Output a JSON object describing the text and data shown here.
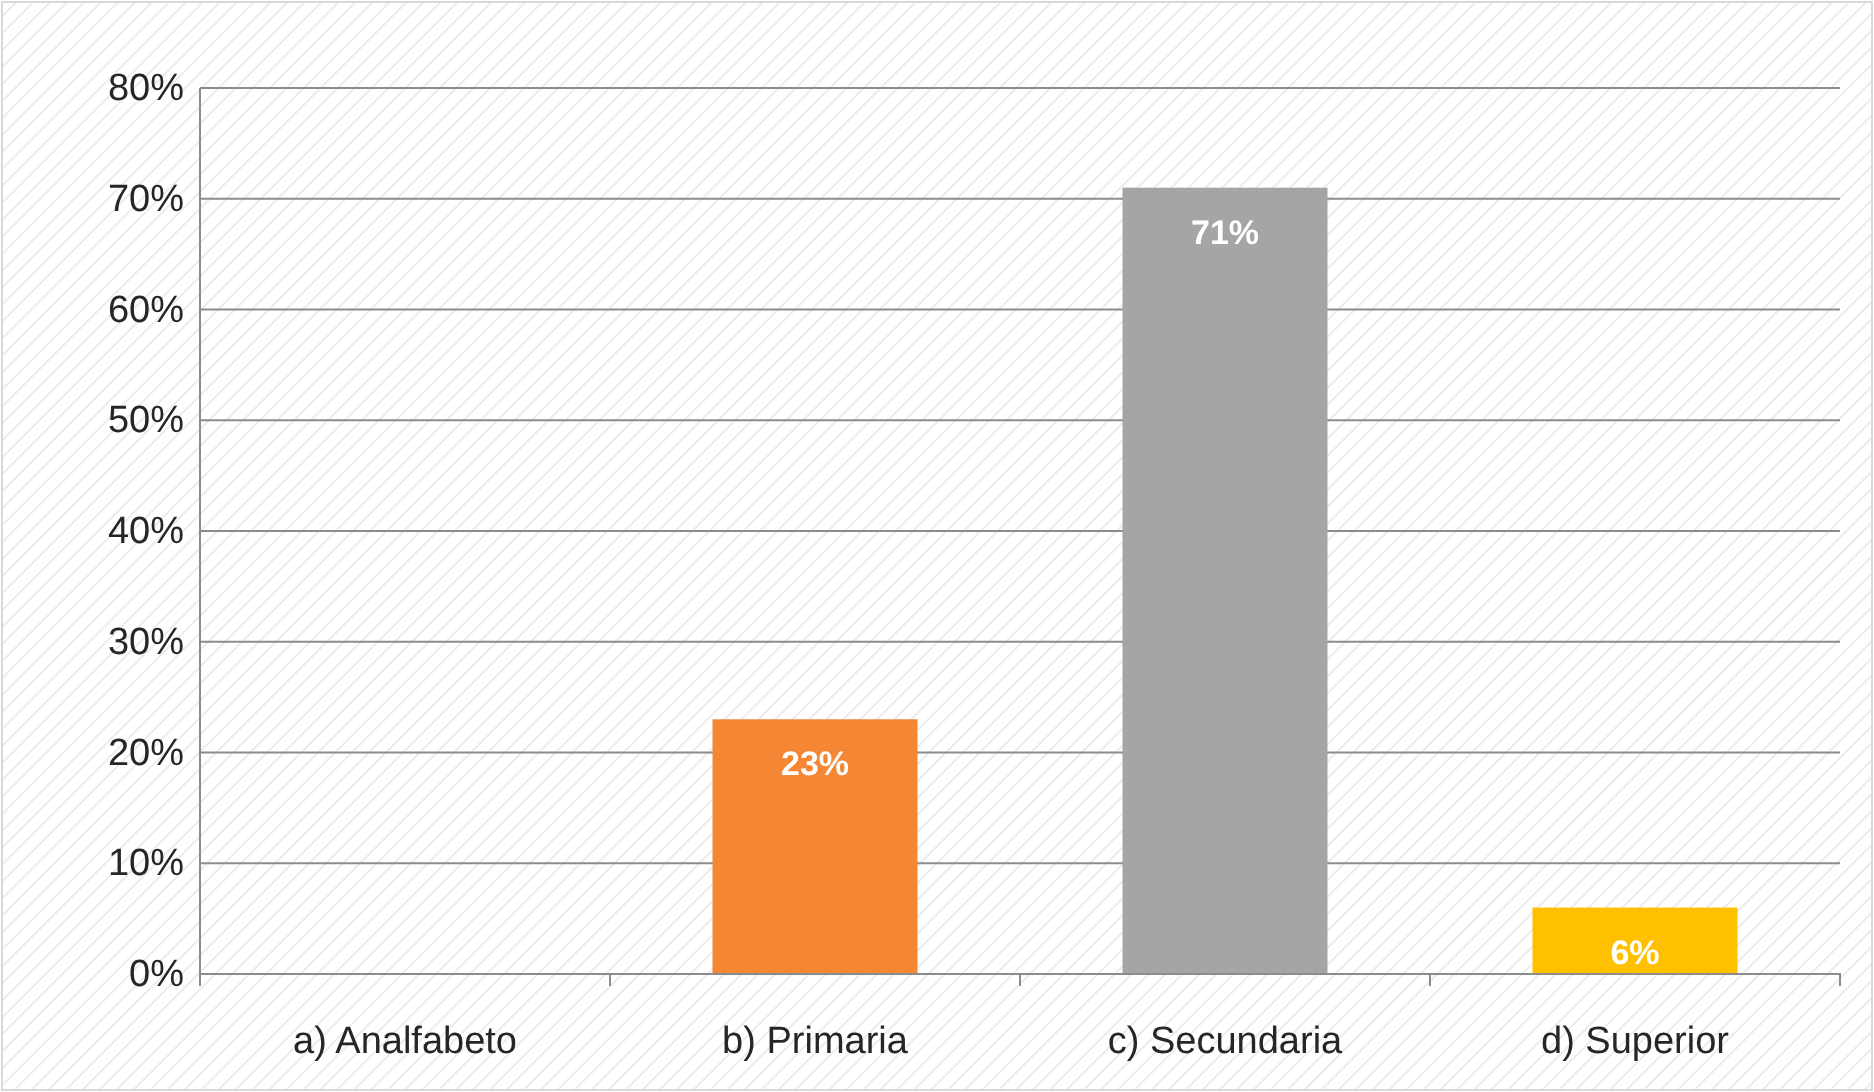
{
  "chart_data": {
    "type": "bar",
    "categories": [
      "a) Analfabeto",
      "b) Primaria",
      "c) Secundaria",
      "d) Superior"
    ],
    "values": [
      0,
      23,
      71,
      6
    ],
    "colors": [
      "#4472c4",
      "#f58634",
      "#a5a5a5",
      "#ffc000"
    ],
    "value_labels": [
      null,
      "23%",
      "71%",
      "6%"
    ],
    "ylim": [
      0,
      80
    ],
    "yticks": [
      {
        "value": 0,
        "label": "0%"
      },
      {
        "value": 10,
        "label": "10%"
      },
      {
        "value": 20,
        "label": "20%"
      },
      {
        "value": 30,
        "label": "30%"
      },
      {
        "value": 40,
        "label": "40%"
      },
      {
        "value": 50,
        "label": "50%"
      },
      {
        "value": 60,
        "label": "60%"
      },
      {
        "value": 70,
        "label": "70%"
      },
      {
        "value": 80,
        "label": "80%"
      }
    ],
    "grid": "y"
  }
}
